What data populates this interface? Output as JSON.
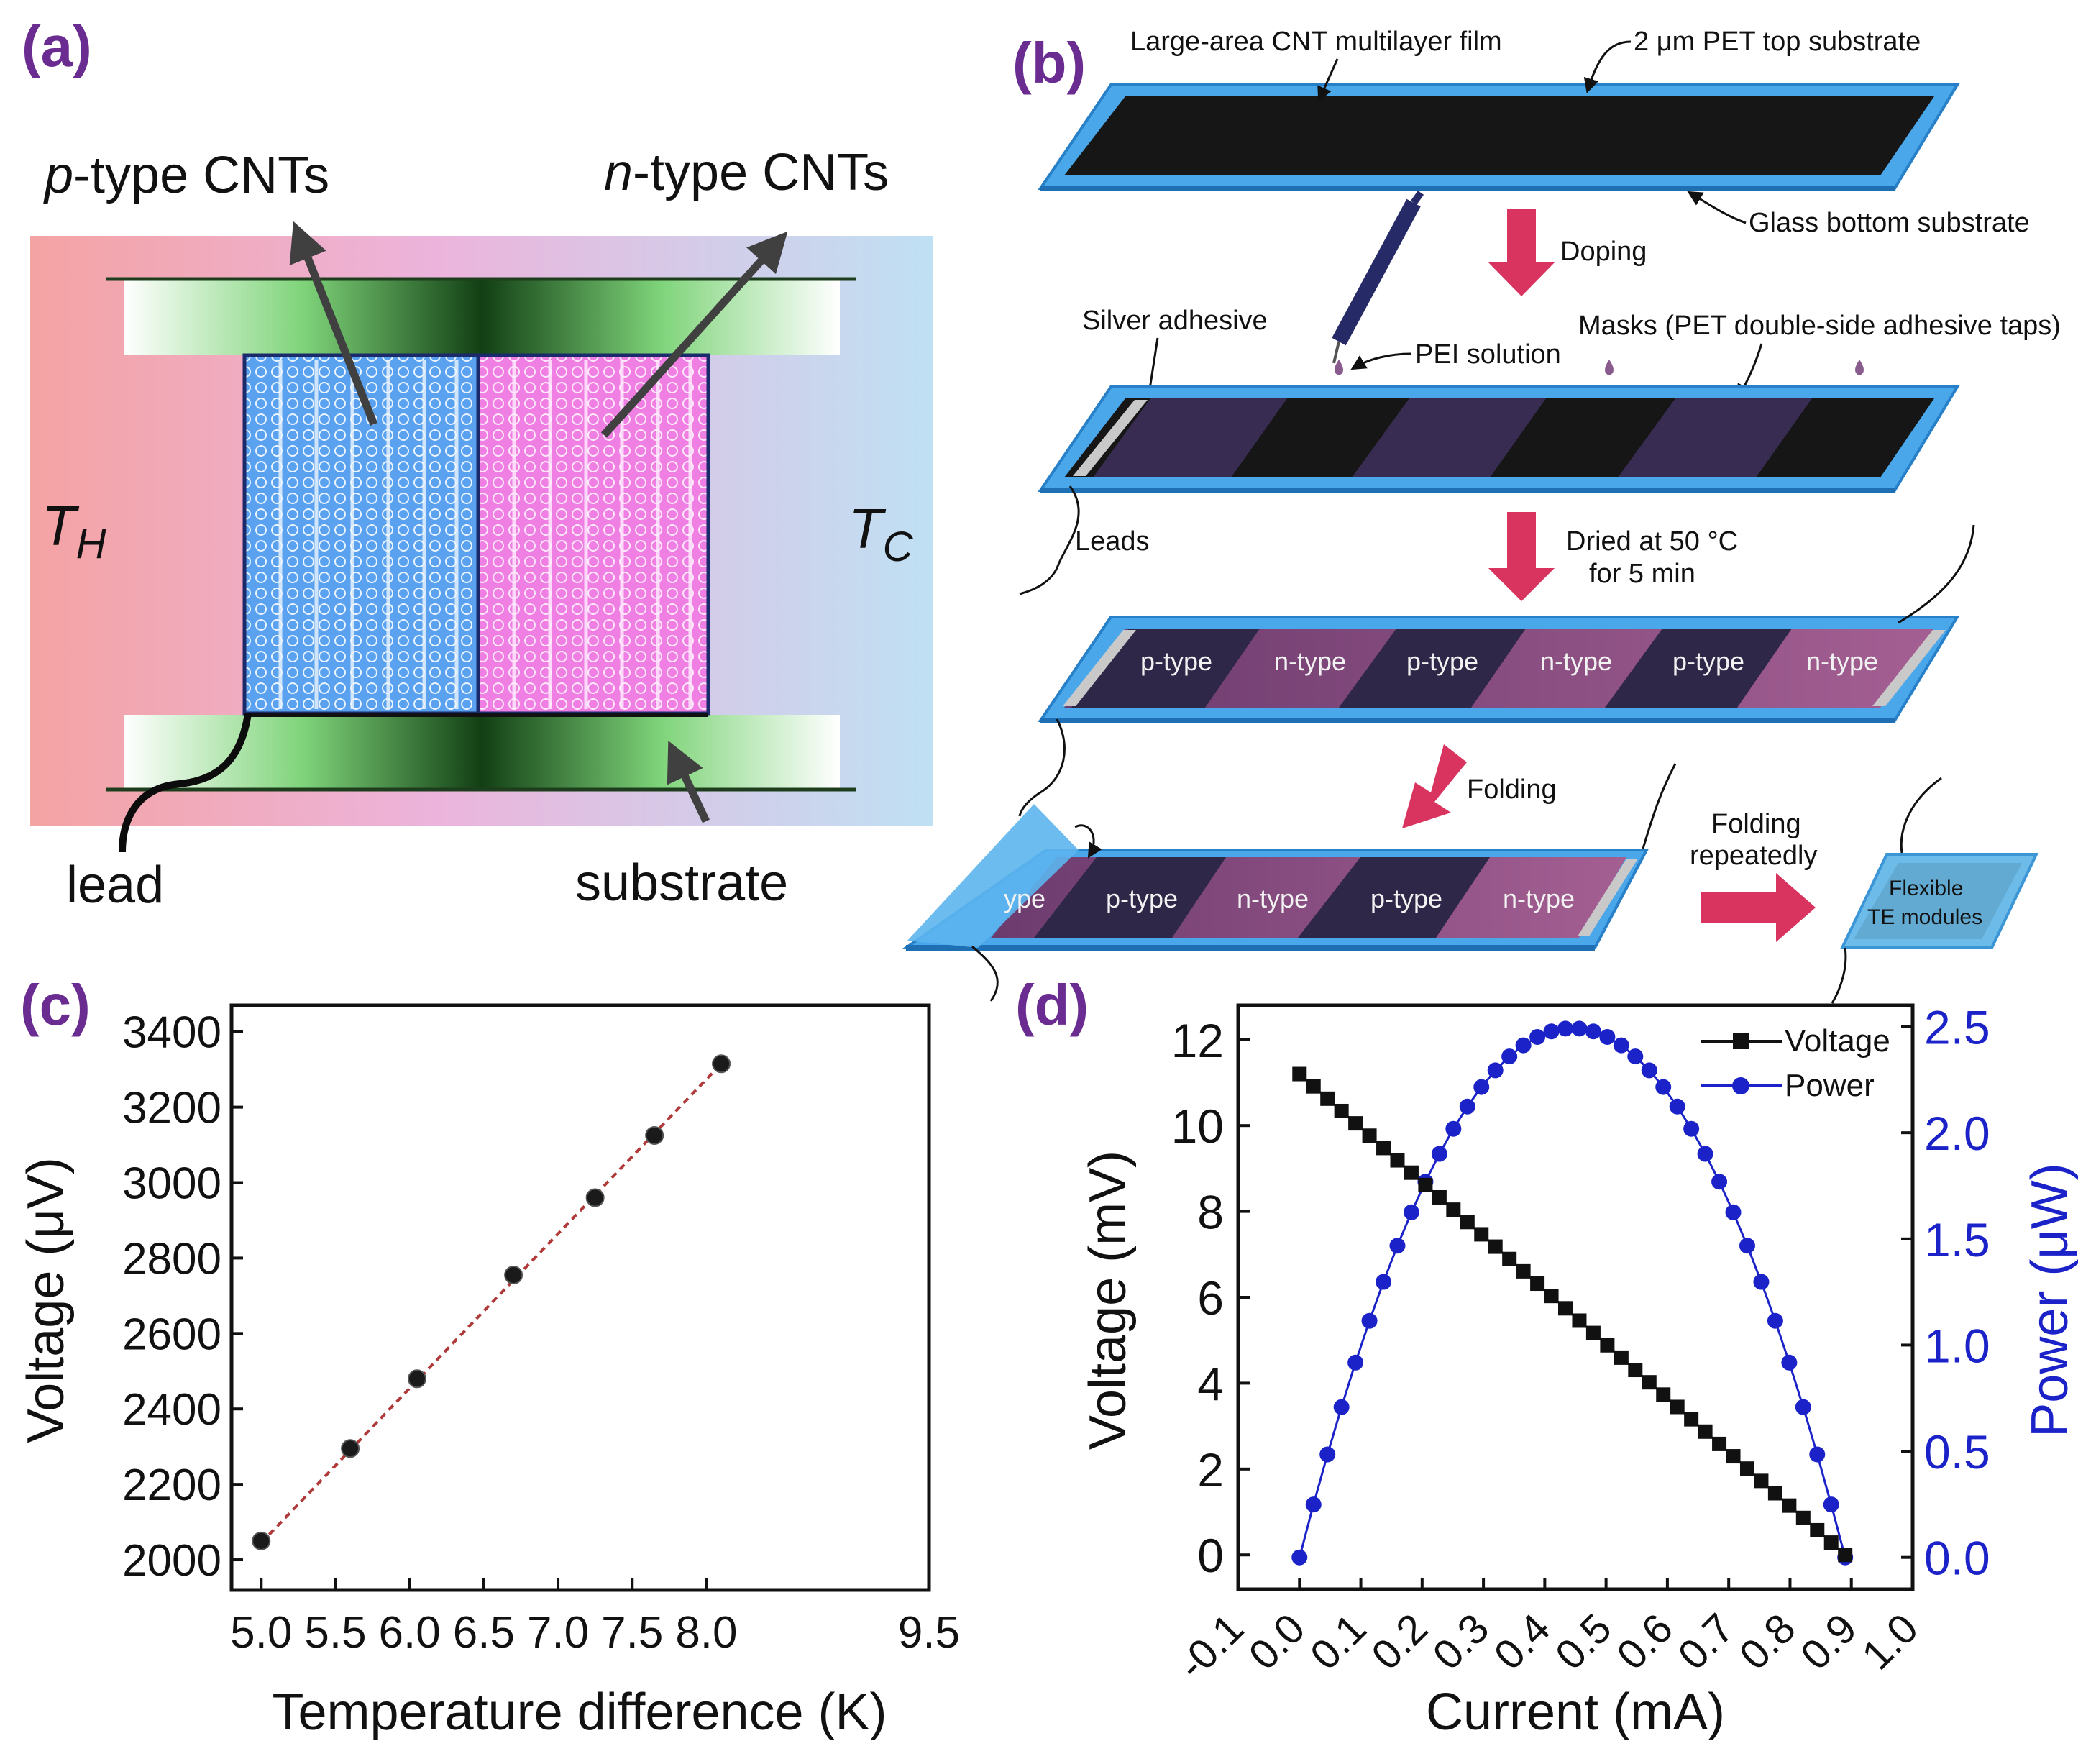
{
  "panels": {
    "a": {
      "label": "(a)",
      "p_type": "p-type CNTs",
      "n_type": "n-type CNTs",
      "t_hot": "T",
      "t_hot_sub": "H",
      "t_cold": "T",
      "t_cold_sub": "C",
      "lead": "lead",
      "substrate": "substrate"
    },
    "b": {
      "label": "(b)",
      "large_area": "Large-area CNT multilayer film",
      "pet_top": "2 μm PET top substrate",
      "glass_bottom": "Glass bottom substrate",
      "doping": "Doping",
      "silver_adhesive": "Silver adhesive",
      "pei_solution": "PEI solution",
      "masks": "Masks (PET double-side adhesive taps)",
      "leads": "Leads",
      "dried_line1": "Dried at 50 °C",
      "dried_line2": "for 5 min",
      "folding": "Folding",
      "folding_rep_line1": "Folding",
      "folding_rep_line2": "repeatedly",
      "module_line1": "Flexible",
      "module_line2": "TE modules",
      "strip_labels": [
        "p-type",
        "n-type",
        "p-type",
        "n-type",
        "p-type",
        "n-type"
      ],
      "fold_labels": [
        "ype",
        "p-type",
        "n-type",
        "p-type",
        "n-type"
      ]
    },
    "c": {
      "label": "(c)"
    },
    "d": {
      "label": "(d)"
    }
  },
  "chart_data": [
    {
      "panel": "c",
      "type": "scatter",
      "title": "",
      "xlabel": "Temperature difference (K)",
      "ylabel": "Voltage (μV)",
      "xlim": [
        4.8,
        9.5
      ],
      "ylim": [
        1920,
        3470
      ],
      "xticks": [
        5.0,
        5.5,
        6.0,
        6.5,
        7.0,
        7.5,
        8.0,
        9.5
      ],
      "xtick_labels": [
        "5.0",
        "5.5",
        "6.0",
        "6.5",
        "7.0",
        "7.5",
        "8.0",
        "9.5"
      ],
      "yticks": [
        2000,
        2200,
        2400,
        2600,
        2800,
        3000,
        3200,
        3400
      ],
      "ytick_labels": [
        "2000",
        "2200",
        "2400",
        "2600",
        "2800",
        "3000",
        "3200",
        "3400"
      ],
      "series": [
        {
          "name": "measured",
          "x": [
            5.0,
            5.6,
            6.05,
            6.7,
            7.25,
            7.65,
            8.1
          ],
          "y": [
            2050,
            2295,
            2480,
            2755,
            2960,
            3125,
            3315
          ]
        }
      ],
      "fit": {
        "x": [
          5.0,
          8.1
        ],
        "y": [
          2045,
          3315
        ]
      },
      "grid": false
    },
    {
      "panel": "d",
      "type": "line",
      "title": "",
      "xlabel": "Current (mA)",
      "ylabel": "Voltage (mV)",
      "ylabel_right": "Power (μW)",
      "xlim": [
        -0.1,
        1.0
      ],
      "ylim": [
        -0.8,
        12.8
      ],
      "ylim_right": [
        -0.15,
        2.6
      ],
      "xticks": [
        -0.1,
        0.0,
        0.1,
        0.2,
        0.3,
        0.4,
        0.5,
        0.6,
        0.7,
        0.8,
        0.9,
        1.0
      ],
      "xtick_labels": [
        "-0.1",
        "0.0",
        "0.1",
        "0.2",
        "0.3",
        "0.4",
        "0.5",
        "0.6",
        "0.7",
        "0.8",
        "0.9",
        "1.0"
      ],
      "yticks": [
        0,
        2,
        4,
        6,
        8,
        10,
        12
      ],
      "ytick_labels": [
        "0",
        "2",
        "4",
        "6",
        "8",
        "10",
        "12"
      ],
      "yticks_right": [
        0.0,
        0.5,
        1.0,
        1.5,
        2.0,
        2.5
      ],
      "ytick_labels_right": [
        "0.0",
        "0.5",
        "1.0",
        "1.5",
        "2.0",
        "2.5"
      ],
      "series": [
        {
          "name": "Voltage",
          "axis": "left",
          "color": "#111111",
          "marker": "square",
          "model": {
            "type": "linear",
            "x0": 0.0,
            "x1": 0.89,
            "y0": 11.2,
            "y1": 0.0,
            "points": 40
          }
        },
        {
          "name": "Power",
          "axis": "right",
          "color": "#1a22c8",
          "marker": "circle",
          "model": {
            "type": "V*I",
            "x0": 0.0,
            "x1": 0.89,
            "points": 40
          }
        }
      ],
      "legend": "top-right",
      "grid": false
    }
  ],
  "colors": {
    "label_purple": "#6a2c91",
    "power_blue": "#1a22c8",
    "fit_red": "#b03a3a",
    "film_edge": "#3fa0e6",
    "arrow_pink": "#d8345f"
  }
}
